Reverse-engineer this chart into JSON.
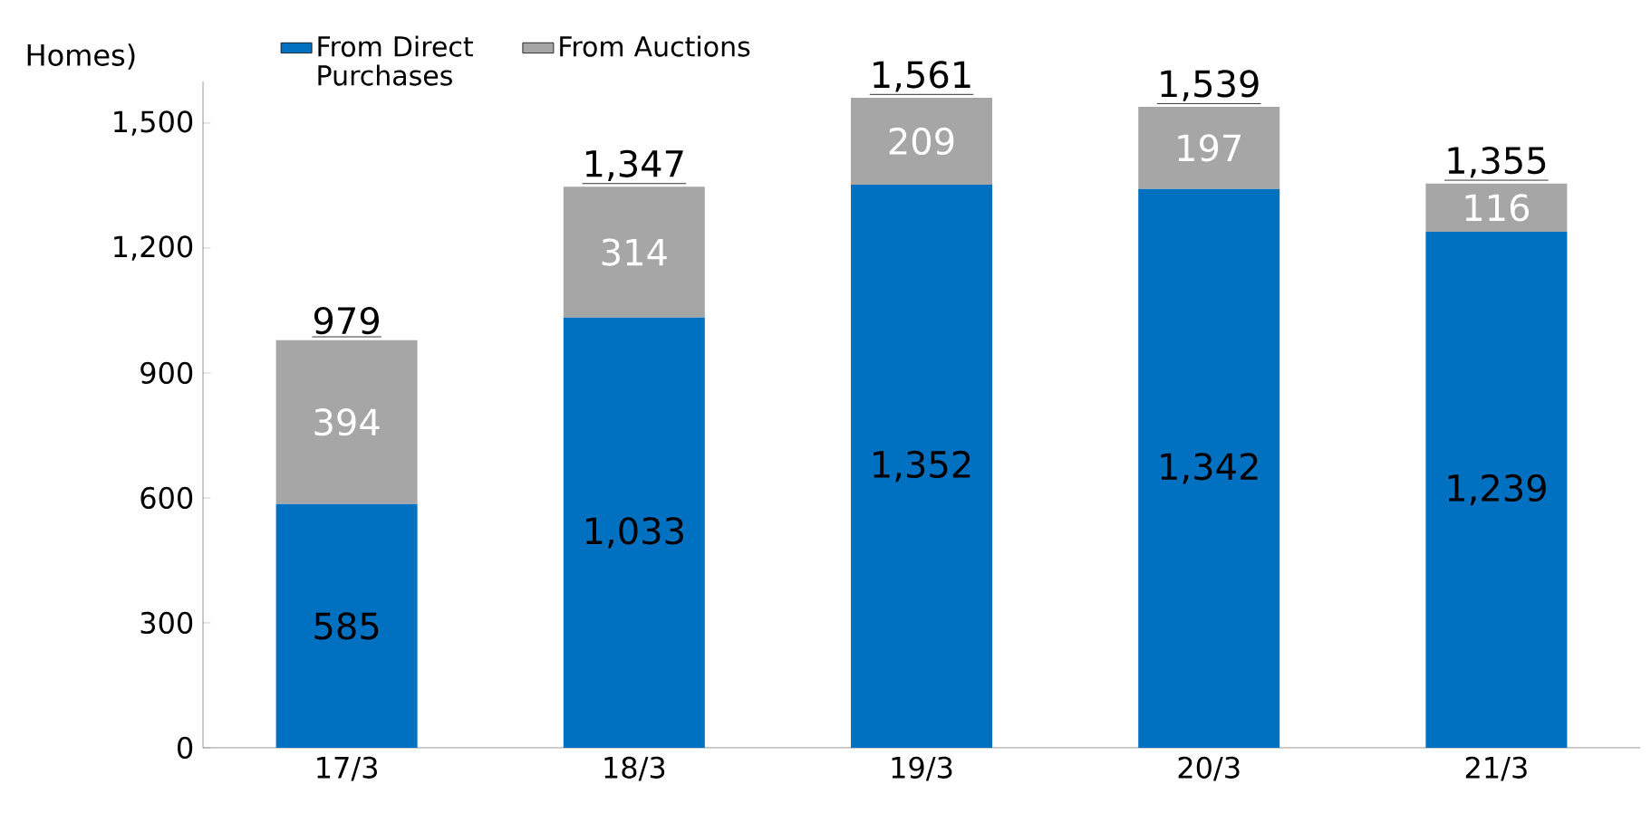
{
  "chart_data": {
    "type": "bar",
    "stacked": true,
    "ylabel": "Homes)",
    "categories": [
      "17/3",
      "18/3",
      "19/3",
      "20/3",
      "21/3"
    ],
    "series": [
      {
        "name": "From Direct Purchases",
        "color": "#0070c0",
        "values": [
          585,
          1033,
          1352,
          1342,
          1239
        ],
        "value_labels": [
          "585",
          "1,033",
          "1,352",
          "1,342",
          "1,239"
        ]
      },
      {
        "name": "From Auctions",
        "color": "#a6a6a6",
        "values": [
          394,
          314,
          209,
          197,
          116
        ],
        "value_labels": [
          "394",
          "314",
          "209",
          "197",
          "116"
        ]
      }
    ],
    "totals": [
      "979",
      "1,347",
      "1,561",
      "1,539",
      "1,355"
    ],
    "legend": "top left",
    "ylim": [
      0,
      1600
    ],
    "yticks": [
      0,
      300,
      600,
      900,
      {
        "value": 1200,
        "label": "1,200"
      },
      {
        "value": 1500,
        "label": "1,500"
      }
    ]
  }
}
